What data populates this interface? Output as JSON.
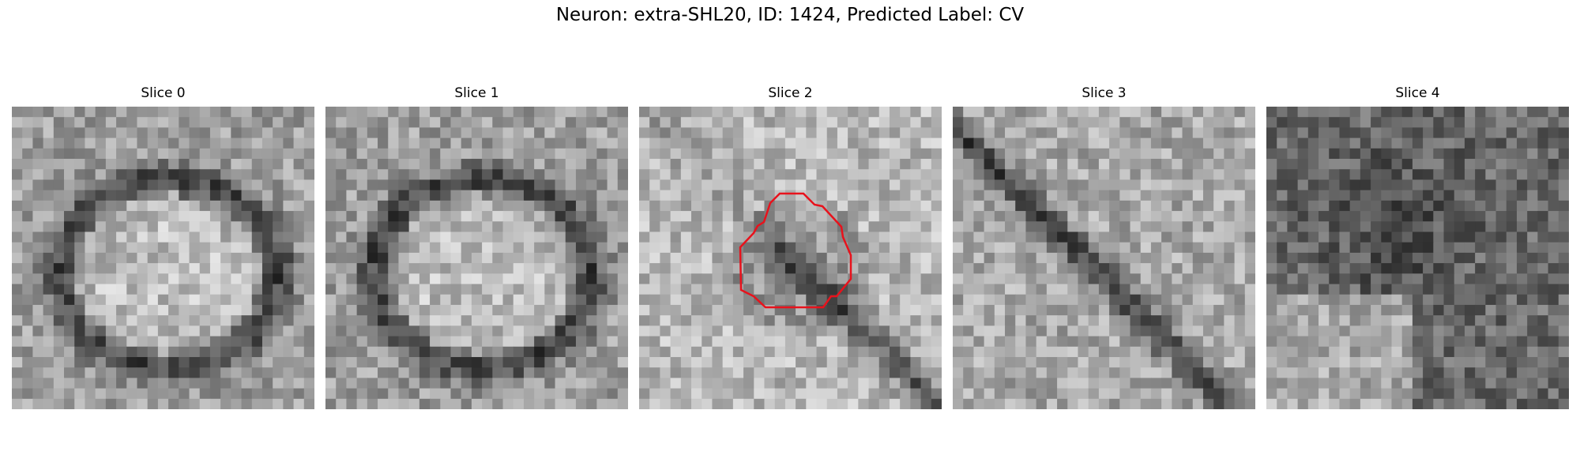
{
  "figure": {
    "title": "Neuron: extra-SHL20, ID: 1424, Predicted Label: CV"
  },
  "slices": [
    {
      "title": "Slice 0",
      "seed": 11,
      "pattern": "ring",
      "has_contour": false
    },
    {
      "title": "Slice 1",
      "seed": 23,
      "pattern": "ring",
      "has_contour": false
    },
    {
      "title": "Slice 2",
      "seed": 37,
      "pattern": "bright",
      "has_contour": true
    },
    {
      "title": "Slice 3",
      "seed": 41,
      "pattern": "diagonal",
      "has_contour": false
    },
    {
      "title": "Slice 4",
      "seed": 59,
      "pattern": "dark",
      "has_contour": false
    }
  ],
  "contour_color": "#e8121c"
}
